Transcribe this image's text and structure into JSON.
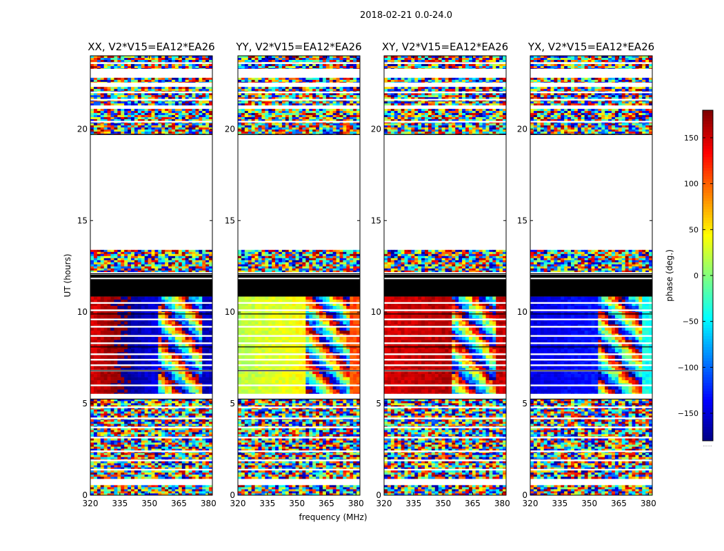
{
  "chart_data": {
    "type": "heatmap",
    "suptitle": "2018-02-21 0.0-24.0",
    "xlabel": "frequency (MHz)",
    "ylabel": "UT (hours)",
    "xlim": [
      320,
      382
    ],
    "ylim": [
      0,
      24
    ],
    "xticks": [
      320,
      335,
      350,
      365,
      380
    ],
    "yticks": [
      0,
      5,
      10,
      15,
      20
    ],
    "colorbar": {
      "label": "phase (deg.)",
      "range": [
        -180,
        180
      ],
      "ticks": [
        -150,
        -100,
        -50,
        0,
        50,
        100,
        150
      ],
      "tick_labels": [
        "−150",
        "−100",
        "−50",
        "0",
        "50",
        "100",
        "150"
      ],
      "colormap": "jet",
      "below_label": "......"
    },
    "panels": [
      {
        "name": "xx",
        "title": "XX, V2*V15=EA12*EA26",
        "coherent_phase_deg": 150,
        "phase_drift": 120,
        "edge_phase_deg": -160
      },
      {
        "name": "yy",
        "title": "YY, V2*V15=EA12*EA26",
        "coherent_phase_deg": 20,
        "phase_drift": 45,
        "edge_phase_deg": 110
      },
      {
        "name": "xy",
        "title": "XY, V2*V15=EA12*EA26",
        "coherent_phase_deg": 150,
        "phase_drift": 20,
        "edge_phase_deg": 155
      },
      {
        "name": "yx",
        "title": "YX, V2*V15=EA12*EA26",
        "coherent_phase_deg": -145,
        "phase_drift": 30,
        "edge_phase_deg": -40
      }
    ],
    "time_segments_ut_hours": [
      {
        "start": 0.0,
        "end": 0.55,
        "kind": "noise"
      },
      {
        "start": 0.9,
        "end": 1.35,
        "kind": "noise"
      },
      {
        "start": 1.45,
        "end": 3.1,
        "kind": "noise"
      },
      {
        "start": 3.2,
        "end": 5.25,
        "kind": "noise"
      },
      {
        "start": 5.55,
        "end": 10.85,
        "kind": "coherent"
      },
      {
        "start": 10.85,
        "end": 11.8,
        "kind": "blanked"
      },
      {
        "start": 11.9,
        "end": 12.05,
        "kind": "blanked"
      },
      {
        "start": 12.2,
        "end": 13.4,
        "kind": "noise"
      },
      {
        "start": 19.7,
        "end": 21.1,
        "kind": "noise"
      },
      {
        "start": 21.3,
        "end": 22.3,
        "kind": "noise"
      },
      {
        "start": 22.55,
        "end": 22.8,
        "kind": "noise"
      },
      {
        "start": 23.3,
        "end": 24.0,
        "kind": "noise"
      }
    ],
    "flagged_rows_ut_hours": [
      6.0,
      6.8,
      7.1,
      7.4,
      7.7,
      8.3,
      8.7,
      9.2,
      9.6,
      10.1,
      10.5,
      3.7,
      4.2,
      4.8,
      2.4,
      1.9,
      20.4,
      21.6,
      22.0,
      23.6
    ]
  }
}
